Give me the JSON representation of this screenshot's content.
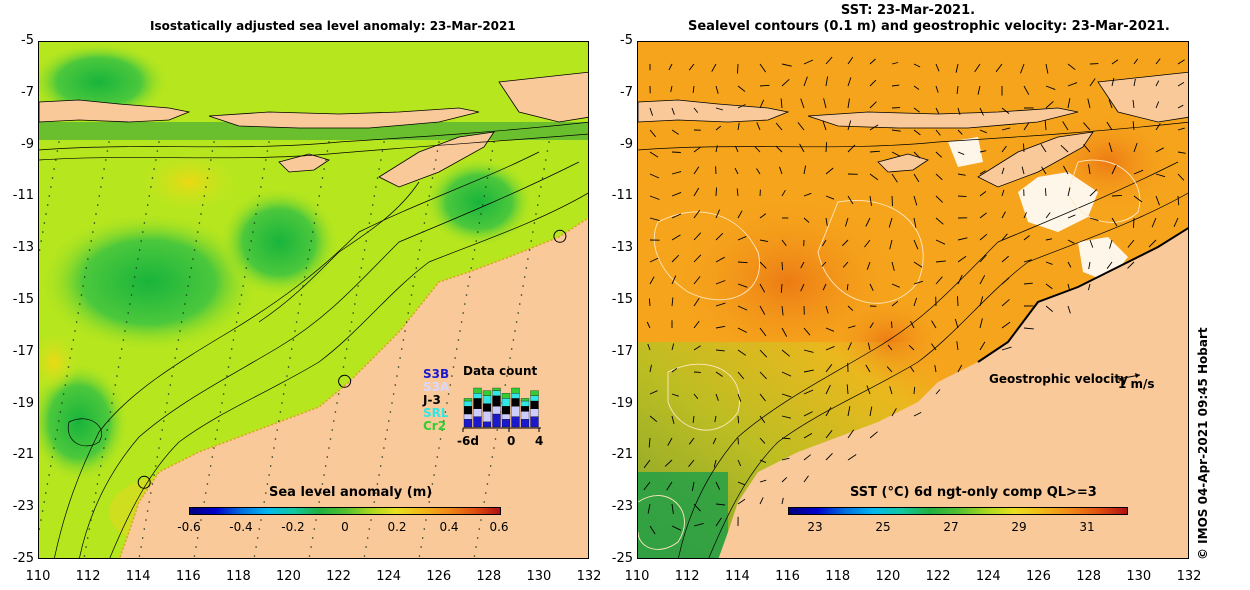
{
  "left": {
    "title": "Isostatically adjusted sea level anomaly: 23-Mar-2021",
    "colorbar": {
      "title": "Sea level anomaly (m)",
      "ticks": [
        "-0.6",
        "-0.4",
        "-0.2",
        "0",
        "0.2",
        "0.4",
        "0.6"
      ],
      "range": [
        -0.6,
        0.6
      ]
    },
    "data_count": {
      "title": "Data count",
      "missions": [
        "S3B",
        "S3A",
        "J-3",
        "SRL",
        "Cr2"
      ],
      "mission_colors": [
        "#1a1acc",
        "#ccccff",
        "#000000",
        "#33e6e6",
        "#33cc33"
      ],
      "xticks": [
        "-6d",
        "0",
        "4"
      ]
    }
  },
  "right": {
    "title_line1": "SST: 23-Mar-2021.",
    "title_line2": "Sealevel contours (0.1 m) and geostrophic velocity: 23-Mar-2021.",
    "colorbar": {
      "title": "SST (°C) 6d ngt-only comp QL>=3",
      "ticks": [
        "23",
        "25",
        "27",
        "29",
        "31"
      ],
      "range": [
        22,
        32
      ]
    },
    "velocity_label": "Geostrophic velocity",
    "velocity_scale": "1 m/s"
  },
  "axes": {
    "lat_ticks": [
      "-5",
      "-7",
      "-9",
      "-11",
      "-13",
      "-15",
      "-17",
      "-19",
      "-21",
      "-23",
      "-25"
    ],
    "lon_ticks": [
      "110",
      "112",
      "114",
      "116",
      "118",
      "120",
      "122",
      "124",
      "126",
      "128",
      "130",
      "132"
    ],
    "lat_range": [
      -25,
      -5
    ],
    "lon_range": [
      110,
      132
    ]
  },
  "credit": "© IMOS 04-Apr-2021 09:45 Hobart",
  "colors": {
    "land": "#f9c99a",
    "sla_ocean": "#b6e61e",
    "sst_ocean": "#f6a41c"
  },
  "stations": [
    {
      "lon": 130.8,
      "lat": -12.5
    },
    {
      "lon": 122.2,
      "lat": -18.1
    },
    {
      "lon": 114.2,
      "lat": -22.0
    }
  ]
}
